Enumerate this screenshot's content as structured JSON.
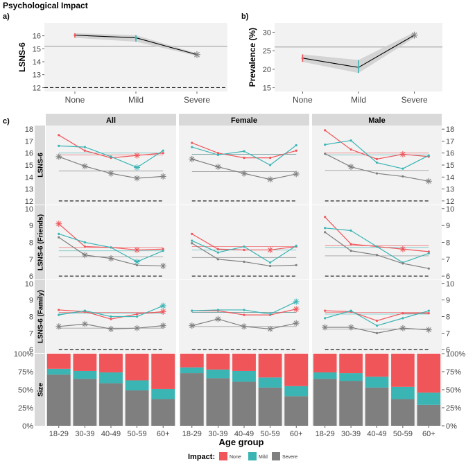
{
  "figure_title": "Psychological Impact",
  "colors": {
    "None": "#F0555A",
    "Mild": "#3BB4B4",
    "Severe": "#7F7F7F",
    "strip": "#D9D9D9",
    "panel": "#F2F2F2"
  },
  "chart_data": [
    {
      "id": "a",
      "panel_label": "a)",
      "type": "line",
      "ylabel": "LSNS-6",
      "categories": [
        "None",
        "Mild",
        "Severe"
      ],
      "yticks": [
        12,
        13,
        14,
        15,
        16
      ],
      "ylim": [
        11.7,
        17.0
      ],
      "values": [
        16.05,
        15.85,
        14.55
      ],
      "ci_low": [
        15.85,
        15.55,
        14.45
      ],
      "ci_high": [
        16.2,
        16.05,
        14.65
      ],
      "hline_solid": 15.2,
      "hline_dashed": 12.0
    },
    {
      "id": "b",
      "panel_label": "b)",
      "type": "line",
      "ylabel": "Prevalence (%)",
      "categories": [
        "None",
        "Mild",
        "Severe"
      ],
      "yticks": [
        15,
        20,
        25,
        30
      ],
      "ylim": [
        14.0,
        32.5
      ],
      "values": [
        23.0,
        20.5,
        29.2
      ],
      "ci_low": [
        22.0,
        19.0,
        28.5
      ],
      "ci_high": [
        24.0,
        22.5,
        30.0
      ],
      "hline_solid": 26.0
    },
    {
      "id": "c",
      "panel_label": "c)",
      "type": "line",
      "xlabel": "Age group",
      "columns": [
        "All",
        "Female",
        "Male"
      ],
      "age_groups": [
        "18-29",
        "30-39",
        "40-49",
        "50-59",
        "60+"
      ],
      "rows": [
        {
          "ylabel": "LSNS-6",
          "yticks": [
            12,
            13,
            14,
            15,
            16,
            17,
            18
          ],
          "ylim": [
            11.7,
            18.3
          ],
          "dashed": 12.0,
          "panels": {
            "All": {
              "means": {
                "None": 15.85,
                "Mild": 16.0,
                "Severe": 14.5
              },
              "series": {
                "None": [
                  17.5,
                  16.2,
                  15.6,
                  15.8,
                  16.0
                ],
                "Mild": [
                  16.6,
                  16.5,
                  15.7,
                  14.8,
                  16.2
                ],
                "Severe": [
                  15.7,
                  14.9,
                  14.3,
                  13.9,
                  14.05
                ]
              },
              "stars": {
                "None": [
                  3
                ],
                "Mild": [
                  3
                ],
                "Severe": [
                  0,
                  1,
                  2,
                  3,
                  4
                ]
              }
            },
            "Female": {
              "means": {
                "None": 15.9,
                "Mild": 15.9,
                "Severe": 14.45
              },
              "series": {
                "None": [
                  16.85,
                  16.0,
                  15.6,
                  15.6,
                  16.2
                ],
                "Mild": [
                  16.5,
                  15.85,
                  16.15,
                  15.0,
                  16.65
                ],
                "Severe": [
                  15.5,
                  14.85,
                  14.3,
                  13.8,
                  14.25
                ]
              },
              "stars": {
                "None": [],
                "Mild": [],
                "Severe": [
                  0,
                  1,
                  2,
                  3,
                  4
                ]
              }
            },
            "Male": {
              "means": {
                "None": 16.0,
                "Mild": 15.85,
                "Severe": 14.55
              },
              "series": {
                "None": [
                  17.9,
                  16.3,
                  15.5,
                  15.9,
                  15.7
                ],
                "Mild": [
                  16.7,
                  17.05,
                  15.2,
                  14.7,
                  15.8
                ],
                "Severe": [
                  15.95,
                  14.85,
                  14.3,
                  14.05,
                  13.65
                ]
              },
              "stars": {
                "None": [
                  3
                ],
                "Mild": [],
                "Severe": [
                  1,
                  4
                ]
              }
            }
          }
        },
        {
          "ylabel": "LSNS-6 (Friends)",
          "yticks": [
            6,
            7,
            8,
            9,
            10
          ],
          "ylim": [
            5.8,
            10.2
          ],
          "dashed": 6.0,
          "panels": {
            "All": {
              "means": {
                "None": 7.7,
                "Mild": 7.5,
                "Severe": 7.15
              },
              "series": {
                "None": [
                  9.1,
                  7.75,
                  7.7,
                  7.55,
                  7.6
                ],
                "Mild": [
                  8.5,
                  8.0,
                  7.7,
                  6.85,
                  7.5
                ],
                "Severe": [
                  8.3,
                  7.25,
                  7.05,
                  6.65,
                  6.6
                ]
              },
              "stars": {
                "None": [
                  0,
                  3
                ],
                "Mild": [
                  3
                ],
                "Severe": [
                  1,
                  2,
                  4
                ]
              }
            },
            "Female": {
              "means": {
                "None": 7.75,
                "Mild": 7.55,
                "Severe": 7.1
              },
              "series": {
                "None": [
                  8.5,
                  7.6,
                  7.55,
                  7.55,
                  7.75
                ],
                "Mild": [
                  8.1,
                  7.4,
                  7.75,
                  6.8,
                  7.8
                ],
                "Severe": [
                  7.95,
                  7.0,
                  6.85,
                  6.6,
                  6.65
                ]
              },
              "stars": {
                "None": [
                  3
                ],
                "Mild": [],
                "Severe": []
              }
            },
            "Male": {
              "means": {
                "None": 7.8,
                "Mild": 7.7,
                "Severe": 7.2
              },
              "series": {
                "None": [
                  9.5,
                  7.9,
                  7.75,
                  7.6,
                  7.45
                ],
                "Mild": [
                  8.85,
                  8.7,
                  7.75,
                  6.8,
                  7.35
                ],
                "Severe": [
                  8.6,
                  7.5,
                  7.25,
                  6.75,
                  6.45
                ]
              },
              "stars": {
                "None": [
                  3
                ],
                "Mild": [],
                "Severe": []
              }
            }
          }
        },
        {
          "ylabel": "LSNS-6 (Family)",
          "yticks": [
            6,
            7,
            8,
            9,
            10
          ],
          "ylim": [
            5.8,
            10.2
          ],
          "dashed": 6.0,
          "panels": {
            "All": {
              "means": {
                "None": 8.25,
                "Mild": 8.2,
                "Severe": 7.3
              },
              "series": {
                "None": [
                  8.4,
                  8.3,
                  7.85,
                  8.15,
                  8.3
                ],
                "Mild": [
                  8.1,
                  8.35,
                  8.0,
                  8.0,
                  8.65
                ],
                "Severe": [
                  7.4,
                  7.55,
                  7.25,
                  7.3,
                  7.45
                ]
              },
              "stars": {
                "None": [
                  4
                ],
                "Mild": [
                  4
                ],
                "Severe": [
                  0,
                  1,
                  2,
                  3,
                  4
                ]
              }
            },
            "Female": {
              "means": {
                "None": 8.25,
                "Mild": 8.25,
                "Severe": 7.4
              },
              "series": {
                "None": [
                  8.35,
                  8.35,
                  8.1,
                  8.1,
                  8.45
                ],
                "Mild": [
                  8.35,
                  8.4,
                  8.4,
                  8.15,
                  8.9
                ],
                "Severe": [
                  7.45,
                  7.85,
                  7.4,
                  7.25,
                  7.6
                ]
              },
              "stars": {
                "None": [
                  4
                ],
                "Mild": [
                  4
                ],
                "Severe": [
                  0,
                  1,
                  2,
                  3,
                  4
                ]
              }
            },
            "Male": {
              "means": {
                "None": 8.25,
                "Mild": 8.15,
                "Severe": 7.25
              },
              "series": {
                "None": [
                  8.35,
                  8.3,
                  7.75,
                  8.2,
                  8.2
                ],
                "Mild": [
                  7.9,
                  8.35,
                  7.45,
                  7.9,
                  8.35
                ],
                "Severe": [
                  7.35,
                  7.35,
                  7.0,
                  7.3,
                  7.2
                ]
              },
              "stars": {
                "None": [],
                "Mild": [],
                "Severe": [
                  0,
                  1,
                  3,
                  4
                ]
              }
            }
          }
        }
      ],
      "size_row": {
        "ylabel": "Size",
        "yticks": [
          "0%",
          "25%",
          "50%",
          "75%",
          "100%"
        ],
        "panels": {
          "All": {
            "Severe": [
              71,
              65,
              59,
              49,
              37
            ],
            "Mild": [
              8,
              11,
              15,
              14,
              14
            ],
            "None": [
              21,
              24,
              26,
              37,
              49
            ]
          },
          "Female": {
            "Severe": [
              73,
              66,
              61,
              53,
              41
            ],
            "Mild": [
              8,
              12,
              15,
              14,
              14
            ],
            "None": [
              19,
              22,
              24,
              33,
              45
            ]
          },
          "Male": {
            "Severe": [
              65,
              62,
              53,
              37,
              29
            ],
            "Mild": [
              9,
              11,
              15,
              17,
              17
            ],
            "None": [
              26,
              27,
              32,
              46,
              54
            ]
          }
        }
      },
      "legend": {
        "title": "Impact:",
        "entries": [
          "None",
          "Mild",
          "Severe"
        ]
      }
    }
  ]
}
